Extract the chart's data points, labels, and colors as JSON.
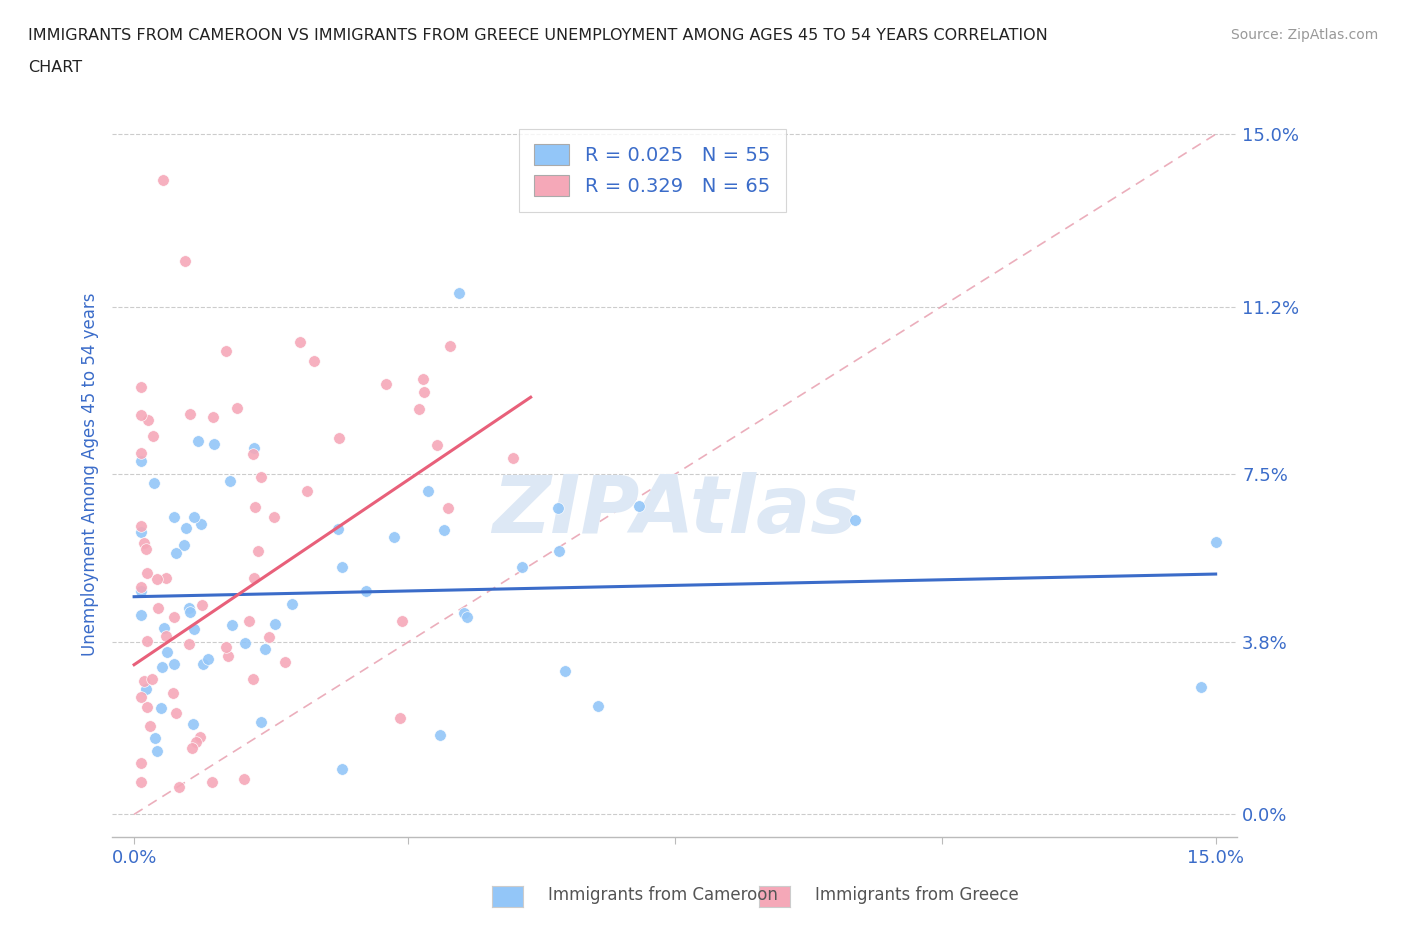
{
  "title_line1": "IMMIGRANTS FROM CAMEROON VS IMMIGRANTS FROM GREECE UNEMPLOYMENT AMONG AGES 45 TO 54 YEARS CORRELATION",
  "title_line2": "CHART",
  "source": "Source: ZipAtlas.com",
  "ylabel": "Unemployment Among Ages 45 to 54 years",
  "xlim": [
    0.0,
    0.15
  ],
  "ylim": [
    0.0,
    0.15
  ],
  "xticks": [
    0.0,
    0.038,
    0.075,
    0.112,
    0.15
  ],
  "yticks": [
    0.0,
    0.038,
    0.075,
    0.112,
    0.15
  ],
  "xticklabels_ends": [
    "0.0%",
    "15.0%"
  ],
  "yticklabels": [
    "0.0%",
    "3.8%",
    "7.5%",
    "11.2%",
    "15.0%"
  ],
  "cameroon_color": "#93C6F8",
  "greece_color": "#F5A8B8",
  "trendline_cameroon_color": "#3B6CC9",
  "trendline_greece_color": "#E8607A",
  "diag_color": "#E8A0B0",
  "watermark_color": "#DDE8F5",
  "legend_label1": "R = 0.025   N = 55",
  "legend_label2": "R = 0.329   N = 65",
  "bottom_label1": "Immigrants from Cameroon",
  "bottom_label2": "Immigrants from Greece",
  "background_color": "#ffffff",
  "grid_color": "#cccccc",
  "tick_color": "#3B6CC9",
  "label_color": "#3B6CC9",
  "title_color": "#222222",
  "source_color": "#999999"
}
